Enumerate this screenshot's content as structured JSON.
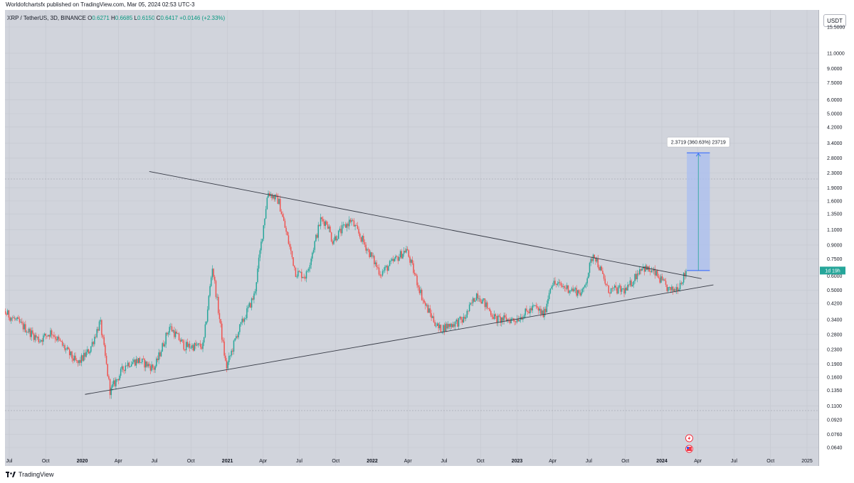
{
  "header": {
    "published": "Worldofchartsfx published on TradingView.com, Mar 05, 2024 02:53 UTC-3"
  },
  "symbol": {
    "name": "XRP / TetherUS, 3D, BINANCE",
    "o_label": "O",
    "o": "0.6271",
    "h_label": "H",
    "h": "0.6685",
    "l_label": "L",
    "l": "0.6150",
    "c_label": "C",
    "c": "0.6417",
    "change": "+0.0146 (+2.33%)"
  },
  "currency_button": "USDT",
  "footer": {
    "brand": "TradingView"
  },
  "colors": {
    "up": "#26a69a",
    "down": "#ef5350",
    "plot_bg": "#d1d4dc",
    "trendline": "#363a45",
    "measure_fill": "#a9bff0",
    "measure_border": "#2962ff",
    "last_price": "#26a69a"
  },
  "icons": [
    "tradingview-logo-icon",
    "lightning-icon",
    "us-flag-icon"
  ],
  "chart_data": {
    "type": "candlestick",
    "y_scale": "log",
    "y_ticks": [
      "15.5000",
      "11.0000",
      "9.0000",
      "7.5000",
      "6.0000",
      "5.0000",
      "4.2000",
      "3.4000",
      "2.8000",
      "2.3000",
      "1.9000",
      "1.6000",
      "1.3500",
      "1.1000",
      "0.9000",
      "0.7500",
      "0.6000",
      "0.5000",
      "0.4200",
      "0.3400",
      "0.2800",
      "0.2300",
      "0.1900",
      "0.1600",
      "0.1350",
      "0.1100",
      "0.0920",
      "0.0760",
      "0.0640"
    ],
    "x_ticks": [
      {
        "label": "Jul",
        "date": "2019-07-01"
      },
      {
        "label": "Oct",
        "date": "2019-10-01"
      },
      {
        "label": "2020",
        "date": "2020-01-01",
        "bold": true
      },
      {
        "label": "Apr",
        "date": "2020-04-01"
      },
      {
        "label": "Jul",
        "date": "2020-07-01"
      },
      {
        "label": "Oct",
        "date": "2020-10-01"
      },
      {
        "label": "2021",
        "date": "2021-01-01",
        "bold": true
      },
      {
        "label": "Apr",
        "date": "2021-04-01"
      },
      {
        "label": "Jul",
        "date": "2021-07-01"
      },
      {
        "label": "Oct",
        "date": "2021-10-01"
      },
      {
        "label": "2022",
        "date": "2022-01-01",
        "bold": true
      },
      {
        "label": "Apr",
        "date": "2022-04-01"
      },
      {
        "label": "Jul",
        "date": "2022-07-01"
      },
      {
        "label": "Oct",
        "date": "2022-10-01"
      },
      {
        "label": "2023",
        "date": "2023-01-01",
        "bold": true
      },
      {
        "label": "Apr",
        "date": "2023-04-01"
      },
      {
        "label": "Jul",
        "date": "2023-07-01"
      },
      {
        "label": "Oct",
        "date": "2023-10-01"
      },
      {
        "label": "2024",
        "date": "2024-01-01",
        "bold": true
      },
      {
        "label": "Apr",
        "date": "2024-04-01"
      },
      {
        "label": "Jul",
        "date": "2024-07-01"
      },
      {
        "label": "Oct",
        "date": "2024-10-01"
      },
      {
        "label": "2025",
        "date": "2025-01-01"
      }
    ],
    "anchors": [
      [
        "2019-05-01",
        0.47
      ],
      [
        "2019-06-15",
        0.38
      ],
      [
        "2019-07-15",
        0.34
      ],
      [
        "2019-09-15",
        0.26
      ],
      [
        "2019-10-15",
        0.29
      ],
      [
        "2019-12-20",
        0.19
      ],
      [
        "2020-01-20",
        0.23
      ],
      [
        "2020-02-15",
        0.33
      ],
      [
        "2020-03-12",
        0.13
      ],
      [
        "2020-03-16",
        0.14
      ],
      [
        "2020-04-20",
        0.19
      ],
      [
        "2020-05-20",
        0.2
      ],
      [
        "2020-07-01",
        0.18
      ],
      [
        "2020-08-08",
        0.31
      ],
      [
        "2020-09-15",
        0.24
      ],
      [
        "2020-11-01",
        0.24
      ],
      [
        "2020-11-24",
        0.68
      ],
      [
        "2020-12-29",
        0.18
      ],
      [
        "2021-01-25",
        0.28
      ],
      [
        "2021-03-10",
        0.47
      ],
      [
        "2021-04-13",
        1.8
      ],
      [
        "2021-05-10",
        1.6
      ],
      [
        "2021-06-22",
        0.63
      ],
      [
        "2021-07-18",
        0.6
      ],
      [
        "2021-08-24",
        1.25
      ],
      [
        "2021-09-10",
        1.2
      ],
      [
        "2021-09-22",
        0.95
      ],
      [
        "2021-11-08",
        1.25
      ],
      [
        "2021-12-20",
        0.85
      ],
      [
        "2022-01-22",
        0.62
      ],
      [
        "2022-03-28",
        0.85
      ],
      [
        "2022-05-12",
        0.42
      ],
      [
        "2022-06-18",
        0.3
      ],
      [
        "2022-08-20",
        0.34
      ],
      [
        "2022-09-22",
        0.48
      ],
      [
        "2022-11-09",
        0.34
      ],
      [
        "2022-12-28",
        0.34
      ],
      [
        "2023-02-15",
        0.4
      ],
      [
        "2023-03-10",
        0.36
      ],
      [
        "2023-03-28",
        0.55
      ],
      [
        "2023-06-15",
        0.48
      ],
      [
        "2023-07-13",
        0.82
      ],
      [
        "2023-08-18",
        0.5
      ],
      [
        "2023-10-05",
        0.5
      ],
      [
        "2023-11-10",
        0.68
      ],
      [
        "2023-12-15",
        0.62
      ],
      [
        "2024-01-22",
        0.49
      ],
      [
        "2024-02-10",
        0.52
      ],
      [
        "2024-03-04",
        0.6417
      ]
    ],
    "upper_trendline": [
      [
        "2020-06-18",
        2.35
      ],
      [
        "2024-04-10",
        0.58
      ]
    ],
    "lower_trendline": [
      [
        "2020-01-08",
        0.128
      ],
      [
        "2024-05-10",
        0.535
      ]
    ],
    "measure": {
      "start_date": "2024-03-04",
      "end_date": "2024-05-01",
      "price_low": 0.645,
      "price_high": 3.0,
      "label": "2.3719 (360.63%) 23719"
    },
    "last_price_label": "1d 19h"
  }
}
